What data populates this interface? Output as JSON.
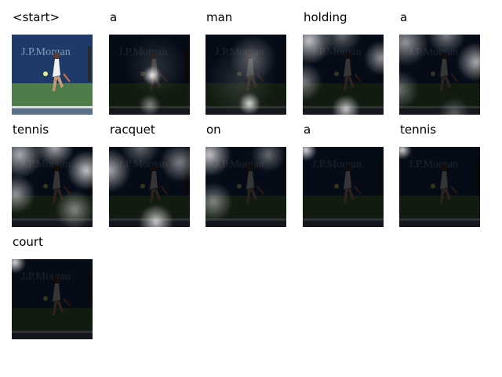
{
  "captions": [
    "<start>",
    "a",
    "man",
    "holding",
    "a",
    "tennis",
    "racquet",
    "on",
    "a",
    "tennis",
    "court"
  ],
  "banner_text": "J.P.Morgan"
}
